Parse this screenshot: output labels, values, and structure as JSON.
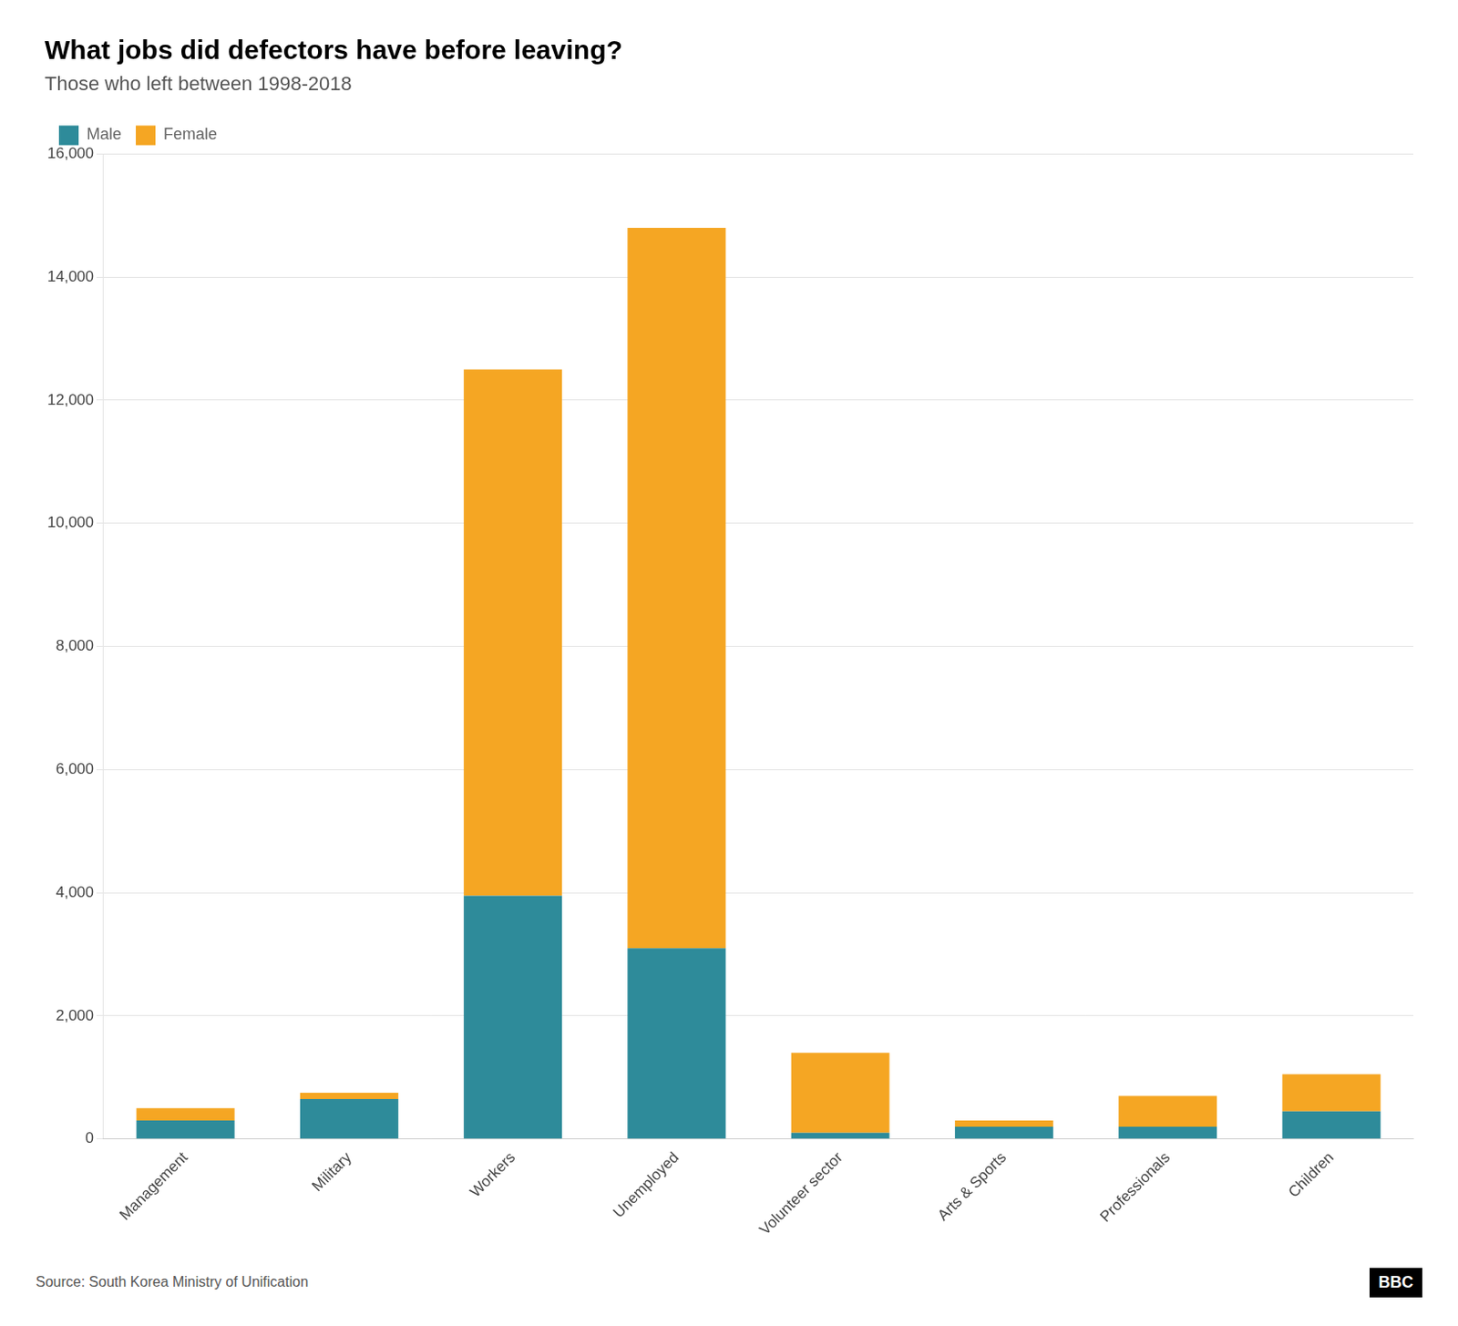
{
  "chart_data": {
    "type": "bar",
    "title": "What jobs did defectors have before leaving?",
    "subtitle": "Those who left between 1998-2018",
    "source": "Source: South Korea Ministry of Unification",
    "annotations": [
      "BBC"
    ],
    "categories": [
      "Management",
      "Military",
      "Workers",
      "Unemployed",
      "Volunteer sector",
      "Arts & Sports",
      "Professionals",
      "Children"
    ],
    "series": [
      {
        "name": "Male",
        "color": "#2e8b9a",
        "values": [
          300,
          650,
          3950,
          3100,
          100,
          200,
          200,
          450
        ]
      },
      {
        "name": "Female",
        "color": "#f5a623",
        "values": [
          200,
          100,
          8550,
          11700,
          1300,
          100,
          500,
          600
        ]
      }
    ],
    "stacked": true,
    "ylim": [
      0,
      16000
    ],
    "yticks": [
      0,
      {
        "value": 2000,
        "label": "2,000"
      },
      {
        "value": 4000,
        "label": "4,000"
      },
      {
        "value": 6000,
        "label": "6,000"
      },
      {
        "value": 8000,
        "label": "8,000"
      },
      {
        "value": 10000,
        "label": "10,000"
      },
      {
        "value": 12000,
        "label": "12,000"
      },
      {
        "value": 14000,
        "label": "14,000"
      },
      {
        "value": 16000,
        "label": "16,000"
      }
    ],
    "grid": true,
    "legend": "top"
  }
}
